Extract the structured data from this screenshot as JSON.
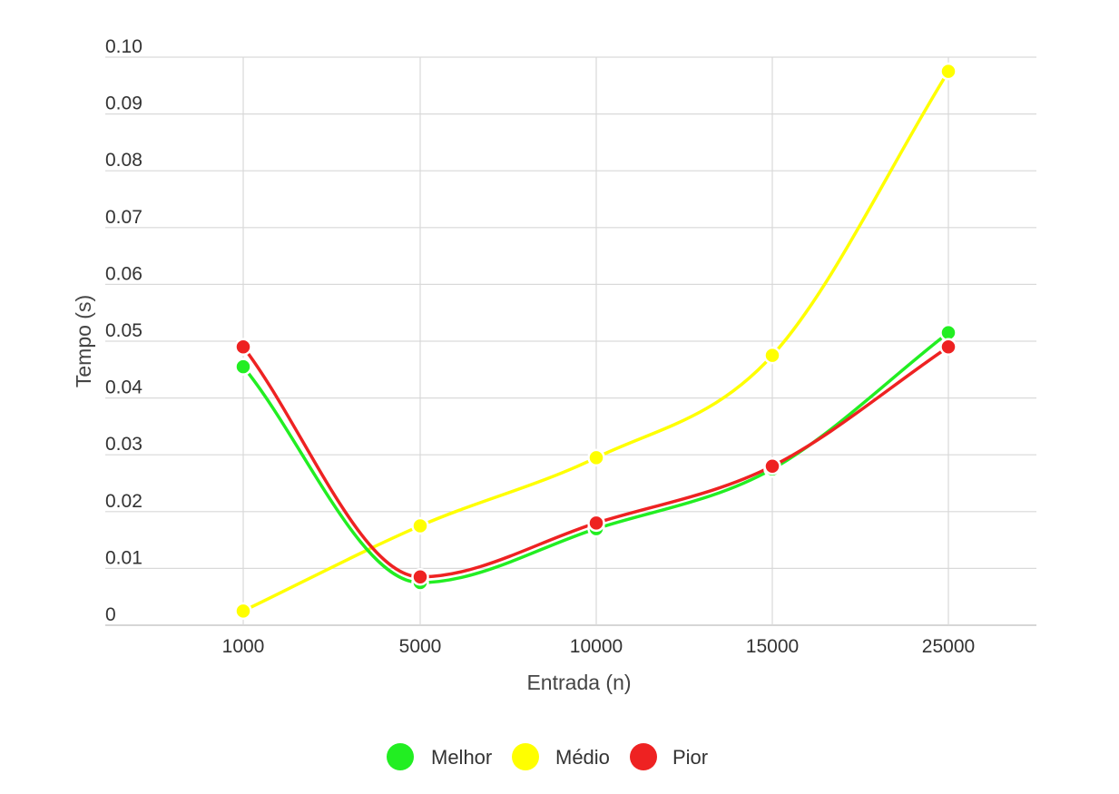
{
  "chart_data": {
    "type": "line",
    "title": "",
    "xlabel": "Entrada (n)",
    "ylabel": "Tempo (s)",
    "categories": [
      "1000",
      "5000",
      "10000",
      "15000",
      "25000"
    ],
    "y_ticks": [
      "0",
      "0.01",
      "0.02",
      "0.03",
      "0.04",
      "0.05",
      "0.06",
      "0.07",
      "0.08",
      "0.09",
      "0.10"
    ],
    "ylim": [
      0,
      0.1
    ],
    "grid": true,
    "smooth": true,
    "legend_position": "bottom",
    "series": [
      {
        "name": "Melhor",
        "color": "#22ee22",
        "values": [
          0.0455,
          0.0075,
          0.017,
          0.0275,
          0.0515
        ]
      },
      {
        "name": "Médio",
        "color": "#ffff00",
        "values": [
          0.0025,
          0.0175,
          0.0295,
          0.0475,
          0.0975
        ]
      },
      {
        "name": "Pior",
        "color": "#ee2222",
        "values": [
          0.049,
          0.0085,
          0.018,
          0.028,
          0.049
        ]
      }
    ]
  }
}
